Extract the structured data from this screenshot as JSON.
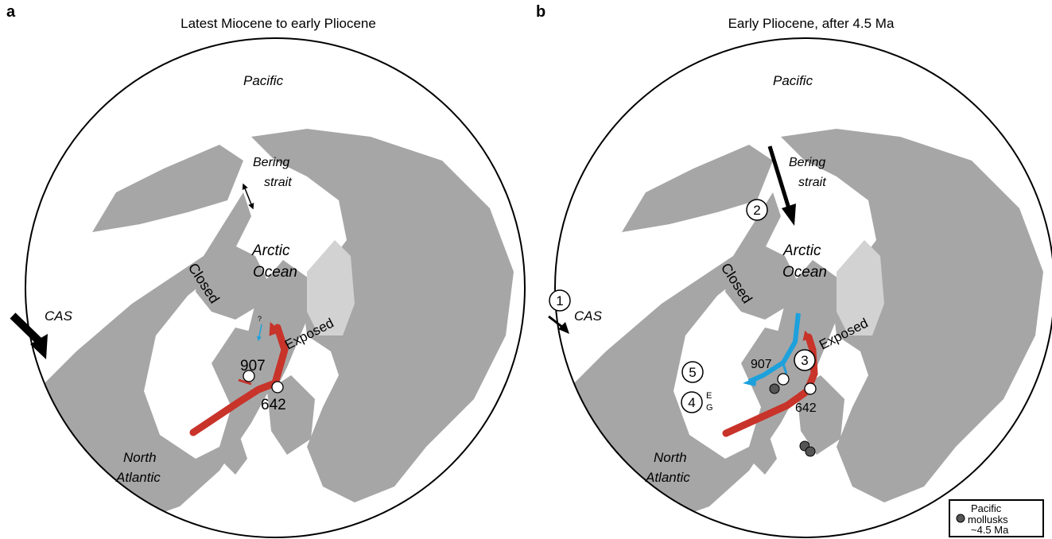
{
  "panels": [
    {
      "letter": "a",
      "title": "Latest Miocene to early Pliocene",
      "labels": {
        "pacific": "Pacific",
        "bering1": "Bering",
        "bering2": "strait",
        "arctic1": "Arctic",
        "arctic2": "Ocean",
        "closed": "Closed",
        "exposed": "Exposed",
        "cas": "CAS",
        "north1": "North",
        "north2": "Atlantic",
        "site907": "907",
        "site642": "642",
        "question": "?"
      }
    },
    {
      "letter": "b",
      "title": "Early Pliocene, after 4.5 Ma",
      "labels": {
        "pacific": "Pacific",
        "bering1": "Bering",
        "bering2": "strait",
        "arctic1": "Arctic",
        "arctic2": "Ocean",
        "closed": "Closed",
        "exposed": "Exposed",
        "cas": "CAS",
        "north1": "North",
        "north2": "Atlantic",
        "site907": "907",
        "site642": "642",
        "e": "E",
        "g": "G"
      },
      "numbered_markers": [
        "1",
        "2",
        "3",
        "4",
        "5"
      ]
    }
  ],
  "legend": {
    "line1": "Pacific",
    "line2": "mollusks",
    "line3": "~4.5 Ma"
  },
  "colors": {
    "land": "#a6a6a6",
    "shelf": "#d2d2d2",
    "atlantic_flow": "#c8332a",
    "cold_flow": "#1da1dc",
    "arrow": "#000000",
    "mollusk_marker": "#555555"
  }
}
